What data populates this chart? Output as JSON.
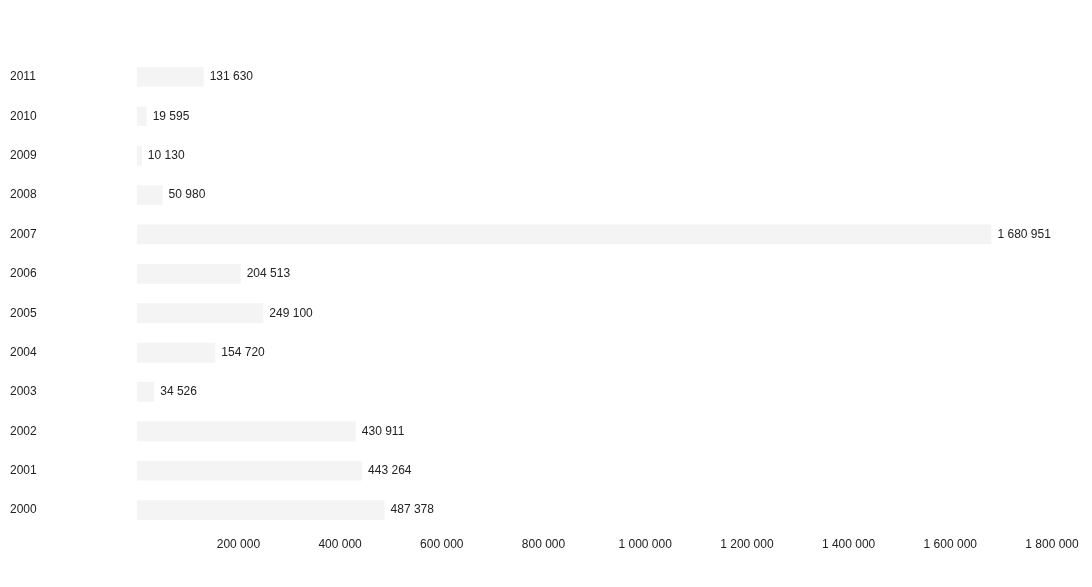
{
  "chart_data": {
    "type": "bar",
    "orientation": "horizontal",
    "categories": [
      "2011",
      "2010",
      "2009",
      "2008",
      "2007",
      "2006",
      "2005",
      "2004",
      "2003",
      "2002",
      "2001",
      "2000"
    ],
    "values": [
      131630,
      19595,
      10130,
      50980,
      1680951,
      204513,
      249100,
      154720,
      34526,
      430911,
      443264,
      487378
    ],
    "value_labels": [
      "131 630",
      "19 595",
      "10 130",
      "50 980",
      "1 680 951",
      "204 513",
      "249 100",
      "154 720",
      "34 526",
      "430 911",
      "443 264",
      "487 378"
    ],
    "color": "#f4f4f4",
    "xlim": [
      0,
      1800000
    ],
    "xticks": [
      {
        "value": 200000,
        "label": "200 000"
      },
      {
        "value": 400000,
        "label": "400 000"
      },
      {
        "value": 600000,
        "label": "600 000"
      },
      {
        "value": 800000,
        "label": "800 000"
      },
      {
        "value": 1000000,
        "label": "1 000 000"
      },
      {
        "value": 1200000,
        "label": "1 200 000"
      },
      {
        "value": 1400000,
        "label": "1 400 000"
      },
      {
        "value": 1600000,
        "label": "1 600 000"
      },
      {
        "value": 1800000,
        "label": "1 800 000"
      }
    ],
    "grid": false,
    "legend": false
  }
}
